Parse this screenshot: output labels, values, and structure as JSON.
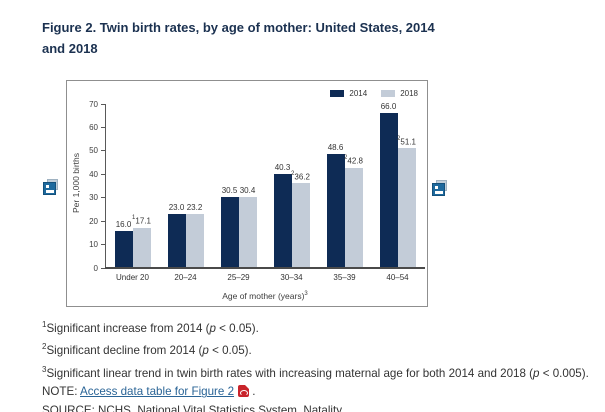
{
  "figure": {
    "title": "Figure 2. Twin birth rates, by age of mother: United States, 2014 and 2018",
    "title_color": "#1b3150"
  },
  "chart_data": {
    "type": "bar",
    "title": "Figure 2. Twin birth rates, by age of mother: United States, 2014 and 2018",
    "categories": [
      "Under 20",
      "20–24",
      "25–29",
      "30–34",
      "35–39",
      "40–54"
    ],
    "series": [
      {
        "name": "2014",
        "color": "#0e2b55",
        "values": [
          16.0,
          23.0,
          30.5,
          40.3,
          48.6,
          66.0
        ],
        "labels": [
          "16.0",
          "23.0",
          "30.5",
          "40.3",
          "48.6",
          "66.0"
        ],
        "label_sups": [
          "",
          "",
          "",
          "",
          "",
          ""
        ]
      },
      {
        "name": "2018",
        "color": "#c3ccd8",
        "values": [
          17.1,
          23.2,
          30.4,
          36.2,
          42.8,
          51.1
        ],
        "labels": [
          "17.1",
          "23.2",
          "30.4",
          "36.2",
          "42.8",
          "51.1"
        ],
        "label_sups": [
          "1",
          "",
          "",
          "2",
          "2",
          "2"
        ]
      }
    ],
    "xlabel": "Age of mother (years)",
    "xlabel_sup": "3",
    "ylabel": "Per 1,000 births",
    "ylim": [
      0,
      70
    ],
    "yticks": [
      0,
      10,
      20,
      30,
      40,
      50,
      60,
      70
    ],
    "grid": false,
    "legend_position": "top-right",
    "value_labels": true
  },
  "footnotes": [
    {
      "sup": "1",
      "pre": "Significant increase from 2014 (",
      "p": "p",
      "post": " < 0.05)."
    },
    {
      "sup": "2",
      "pre": "Significant decline from 2014 (",
      "p": "p",
      "post": " < 0.05)."
    },
    {
      "sup": "3",
      "pre": "Significant linear trend in twin birth rates with increasing maternal age for both 2014 and 2018 (",
      "p": "p",
      "post": " < 0.005)."
    }
  ],
  "note": {
    "label": "NOTE: ",
    "link_text": "Access data table for Figure 2",
    "after": " ."
  },
  "source": {
    "text": "SOURCE: NCHS, National Vital Statistics System, Natality."
  },
  "icons": {
    "left_image_icon": "view-image",
    "right_image_icon": "view-image",
    "pdf_icon": "pdf-file"
  },
  "colors": {
    "series_2014": "#0e2b55",
    "series_2018": "#c3ccd8",
    "axis": "#595959",
    "link": "#2a6496",
    "pdf_red": "#c9242b",
    "icon_blue": "#1e6a9e",
    "chart_border": "#8f8f8f"
  }
}
